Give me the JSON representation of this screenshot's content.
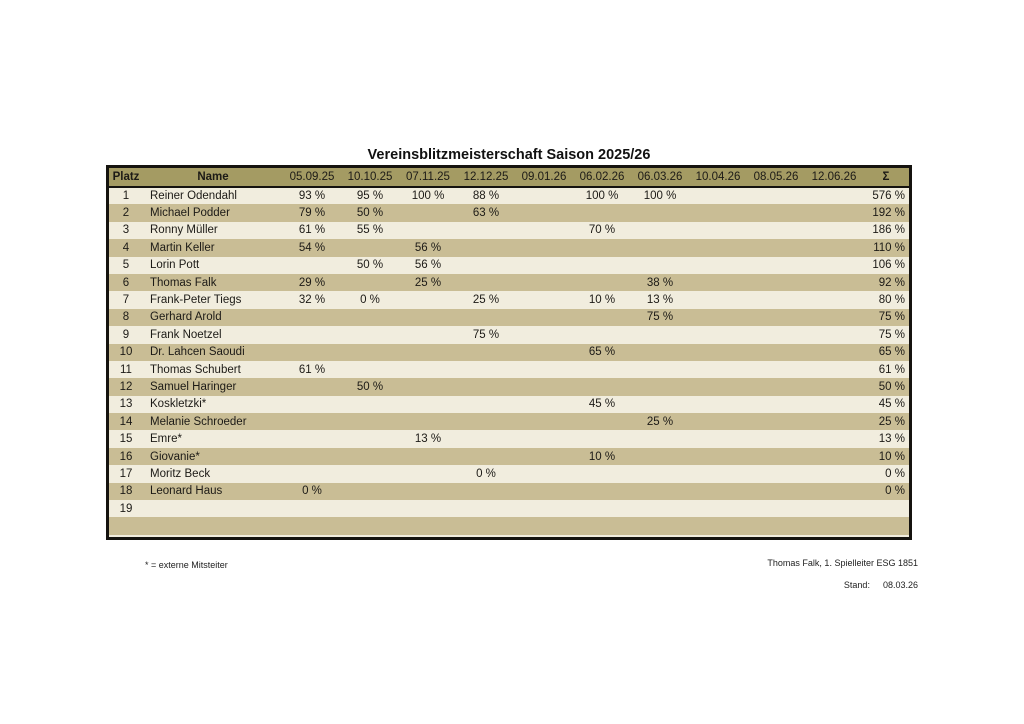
{
  "page": {
    "title": "Vereinsblitzmeisterschaft Saison 2025/26",
    "footnote": "* = externe Mitsteiter",
    "signature": "Thomas Falk, 1. Spielleiter ESG 1851",
    "stand_label": "Stand:",
    "stand_date": "08.03.26"
  },
  "colors": {
    "header_bg": "#a49b63",
    "row_khaki": "#c9bd95",
    "row_cream": "#f1edde",
    "frame": "#15130f"
  },
  "table": {
    "columns": [
      "Platz",
      "Name",
      "05.09.25",
      "10.10.25",
      "07.11.25",
      "12.12.25",
      "09.01.26",
      "06.02.26",
      "06.03.26",
      "10.04.26",
      "08.05.26",
      "12.06.26",
      "Σ"
    ],
    "rows": [
      {
        "platz": "1",
        "name": "Reiner Odendahl",
        "values": [
          "93 %",
          "95 %",
          "100 %",
          "88 %",
          "",
          "100 %",
          "100 %",
          "",
          "",
          ""
        ],
        "sum": "576 %"
      },
      {
        "platz": "2",
        "name": "Michael Podder",
        "values": [
          "79 %",
          "50 %",
          "",
          "63 %",
          "",
          "",
          "",
          "",
          "",
          ""
        ],
        "sum": "192 %"
      },
      {
        "platz": "3",
        "name": "Ronny Müller",
        "values": [
          "61 %",
          "55 %",
          "",
          "",
          "",
          "70 %",
          "",
          "",
          "",
          ""
        ],
        "sum": "186 %"
      },
      {
        "platz": "4",
        "name": "Martin Keller",
        "values": [
          "54 %",
          "",
          "56 %",
          "",
          "",
          "",
          "",
          "",
          "",
          ""
        ],
        "sum": "110 %"
      },
      {
        "platz": "5",
        "name": "Lorin Pott",
        "values": [
          "",
          "50 %",
          "56 %",
          "",
          "",
          "",
          "",
          "",
          "",
          ""
        ],
        "sum": "106 %"
      },
      {
        "platz": "6",
        "name": "Thomas Falk",
        "values": [
          "29 %",
          "",
          "25 %",
          "",
          "",
          "",
          "38 %",
          "",
          "",
          ""
        ],
        "sum": "92 %"
      },
      {
        "platz": "7",
        "name": "Frank-Peter Tiegs",
        "values": [
          "32 %",
          "0 %",
          "",
          "25 %",
          "",
          "10 %",
          "13 %",
          "",
          "",
          ""
        ],
        "sum": "80 %"
      },
      {
        "platz": "8",
        "name": "Gerhard Arold",
        "values": [
          "",
          "",
          "",
          "",
          "",
          "",
          "75 %",
          "",
          "",
          ""
        ],
        "sum": "75 %"
      },
      {
        "platz": "9",
        "name": "Frank Noetzel",
        "values": [
          "",
          "",
          "",
          "75 %",
          "",
          "",
          "",
          "",
          "",
          ""
        ],
        "sum": "75 %"
      },
      {
        "platz": "10",
        "name": "Dr. Lahcen Saoudi",
        "values": [
          "",
          "",
          "",
          "",
          "",
          "65 %",
          "",
          "",
          "",
          ""
        ],
        "sum": "65 %"
      },
      {
        "platz": "11",
        "name": "Thomas Schubert",
        "values": [
          "61 %",
          "",
          "",
          "",
          "",
          "",
          "",
          "",
          "",
          ""
        ],
        "sum": "61 %"
      },
      {
        "platz": "12",
        "name": "Samuel Haringer",
        "values": [
          "",
          "50 %",
          "",
          "",
          "",
          "",
          "",
          "",
          "",
          ""
        ],
        "sum": "50 %"
      },
      {
        "platz": "13",
        "name": "Koskletzki*",
        "values": [
          "",
          "",
          "",
          "",
          "",
          "45 %",
          "",
          "",
          "",
          ""
        ],
        "sum": "45 %"
      },
      {
        "platz": "14",
        "name": "Melanie Schroeder",
        "values": [
          "",
          "",
          "",
          "",
          "",
          "",
          "25 %",
          "",
          "",
          ""
        ],
        "sum": "25 %"
      },
      {
        "platz": "15",
        "name": "Emre*",
        "values": [
          "",
          "",
          "13 %",
          "",
          "",
          "",
          "",
          "",
          "",
          ""
        ],
        "sum": "13 %"
      },
      {
        "platz": "16",
        "name": "Giovanie*",
        "values": [
          "",
          "",
          "",
          "",
          "",
          "10 %",
          "",
          "",
          "",
          ""
        ],
        "sum": "10 %"
      },
      {
        "platz": "17",
        "name": "Moritz Beck",
        "values": [
          "",
          "",
          "",
          "0 %",
          "",
          "",
          "",
          "",
          "",
          ""
        ],
        "sum": "0 %"
      },
      {
        "platz": "18",
        "name": "Leonard Haus",
        "values": [
          "0 %",
          "",
          "",
          "",
          "",
          "",
          "",
          "",
          "",
          ""
        ],
        "sum": "0 %"
      },
      {
        "platz": "19",
        "name": "",
        "values": [
          "",
          "",
          "",
          "",
          "",
          "",
          "",
          "",
          "",
          ""
        ],
        "sum": ""
      },
      {
        "platz": "",
        "name": "",
        "values": [
          "",
          "",
          "",
          "",
          "",
          "",
          "",
          "",
          "",
          ""
        ],
        "sum": ""
      }
    ]
  }
}
